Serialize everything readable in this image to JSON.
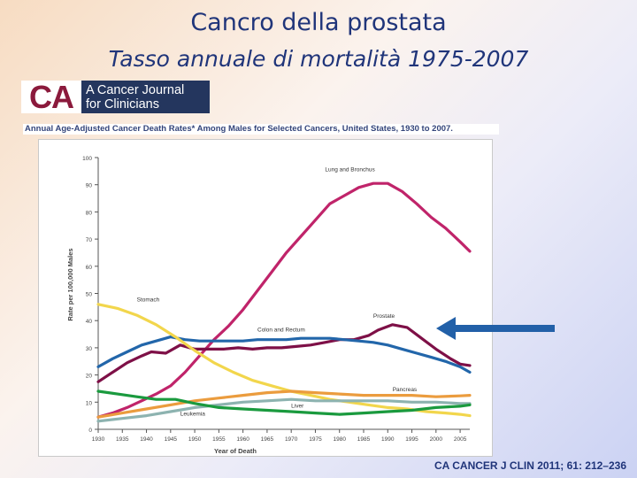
{
  "slide": {
    "title": "Cancro della prostata",
    "subtitle": "Tasso annuale di mortalità 1975-2007",
    "citation": "CA CANCER J CLIN 2011; 61: 212–236"
  },
  "logo": {
    "mark": "CA",
    "line1": "A Cancer Journal",
    "line2": "for Clinicians",
    "mark_color": "#8b1a3c",
    "bg_color": "#24365e"
  },
  "chart_data": {
    "type": "line",
    "title": "Annual Age-Adjusted Cancer Death Rates* Among Males for Selected Cancers, United States, 1930 to 2007.",
    "xlabel": "Year of Death",
    "ylabel": "Rate per 100,000 Males",
    "xlim": [
      1930,
      2007
    ],
    "ylim": [
      0,
      100
    ],
    "x_ticks": [
      1930,
      1935,
      1940,
      1945,
      1950,
      1955,
      1960,
      1965,
      1970,
      1975,
      1980,
      1985,
      1990,
      1995,
      2000,
      2005
    ],
    "y_ticks": [
      0,
      10,
      20,
      30,
      40,
      50,
      60,
      70,
      80,
      90,
      100
    ],
    "grid": false,
    "series": [
      {
        "name": "Lung and Bronchus",
        "color": "#c0246a",
        "x": [
          1930,
          1933,
          1936,
          1939,
          1942,
          1945,
          1948,
          1951,
          1954,
          1957,
          1960,
          1963,
          1966,
          1969,
          1972,
          1975,
          1978,
          1981,
          1984,
          1987,
          1990,
          1993,
          1996,
          1999,
          2002,
          2005,
          2007
        ],
        "y": [
          4.5,
          6,
          8,
          10.5,
          13,
          16,
          21,
          27,
          33,
          38,
          44,
          51,
          58,
          65,
          71,
          77,
          83,
          86,
          89,
          90.5,
          90.5,
          87.5,
          83,
          78,
          74,
          69,
          65.5
        ]
      },
      {
        "name": "Prostate",
        "color": "#7e1047",
        "x": [
          1930,
          1933,
          1936,
          1939,
          1941,
          1944,
          1947,
          1950,
          1953,
          1956,
          1959,
          1962,
          1965,
          1968,
          1971,
          1974,
          1977,
          1980,
          1983,
          1986,
          1988,
          1991,
          1994,
          1997,
          2000,
          2003,
          2005,
          2007
        ],
        "y": [
          17.5,
          21,
          24.5,
          27,
          28.5,
          28,
          31,
          29.5,
          29.5,
          29.5,
          30,
          29.5,
          30,
          30,
          30.5,
          31,
          32,
          33,
          33,
          34.5,
          36.5,
          38.5,
          37.5,
          33.5,
          29.5,
          26,
          24,
          23.5
        ]
      },
      {
        "name": "Colon and Rectum",
        "color": "#2266aa",
        "x": [
          1930,
          1933,
          1936,
          1939,
          1942,
          1945,
          1948,
          1951,
          1954,
          1957,
          1960,
          1963,
          1966,
          1969,
          1972,
          1975,
          1978,
          1981,
          1984,
          1987,
          1990,
          1993,
          1996,
          1999,
          2002,
          2005,
          2007
        ],
        "y": [
          23,
          26,
          28.5,
          31,
          32.5,
          34,
          33,
          32.5,
          32.5,
          32.5,
          32.5,
          33,
          33,
          33,
          33.5,
          33.5,
          33.5,
          33,
          32.5,
          32,
          31,
          29.5,
          28,
          26.5,
          25,
          23,
          21
        ]
      },
      {
        "name": "Stomach",
        "color": "#f2d64c",
        "x": [
          1930,
          1934,
          1938,
          1942,
          1946,
          1950,
          1954,
          1958,
          1962,
          1966,
          1970,
          1974,
          1978,
          1982,
          1986,
          1990,
          1994,
          1998,
          2002,
          2005,
          2007
        ],
        "y": [
          46,
          44.5,
          42,
          38.5,
          34,
          29,
          24.5,
          21,
          18,
          16,
          14,
          12.5,
          11,
          10,
          9,
          8,
          7.5,
          6.5,
          6,
          5.5,
          5
        ]
      },
      {
        "name": "Pancreas",
        "color": "#eb9c3e",
        "x": [
          1930,
          1935,
          1940,
          1945,
          1950,
          1955,
          1960,
          1965,
          1970,
          1975,
          1980,
          1985,
          1990,
          1995,
          2000,
          2005,
          2007
        ],
        "y": [
          4.5,
          6,
          7.5,
          9,
          10.5,
          11.5,
          12.5,
          13.5,
          14,
          13.5,
          13,
          12.5,
          12.5,
          12.5,
          12,
          12.3,
          12.5
        ]
      },
      {
        "name": "Leukemia",
        "color": "#8db3b0",
        "x": [
          1930,
          1935,
          1940,
          1945,
          1950,
          1955,
          1960,
          1965,
          1970,
          1975,
          1980,
          1985,
          1990,
          1995,
          2000,
          2005,
          2007
        ],
        "y": [
          3,
          4,
          5,
          6.5,
          8,
          9,
          10,
          10.5,
          11,
          10.5,
          10.5,
          10.5,
          10.5,
          10,
          10,
          9.5,
          9.5
        ]
      },
      {
        "name": "Liver",
        "color": "#1a9a3e",
        "x": [
          1930,
          1934,
          1938,
          1942,
          1946,
          1950,
          1955,
          1960,
          1965,
          1970,
          1975,
          1980,
          1985,
          1990,
          1995,
          2000,
          2005,
          2007
        ],
        "y": [
          14,
          13,
          12,
          11,
          11,
          9.5,
          8,
          7.5,
          7,
          6.5,
          6,
          5.5,
          6,
          6.5,
          7,
          8,
          8.5,
          9
        ]
      }
    ],
    "labels": [
      {
        "text": "Lung and Bronchus",
        "x": 1977,
        "y": 95
      },
      {
        "text": "Prostate",
        "x": 1987,
        "y": 41
      },
      {
        "text": "Colon and Rectum",
        "x": 1963,
        "y": 36
      },
      {
        "text": "Stomach",
        "x": 1938,
        "y": 47
      },
      {
        "text": "Pancreas",
        "x": 1991,
        "y": 14
      },
      {
        "text": "Liver",
        "x": 1970,
        "y": 8
      },
      {
        "text": "Leukemia",
        "x": 1947,
        "y": 5
      }
    ],
    "arrow_color": "#2260a8"
  }
}
